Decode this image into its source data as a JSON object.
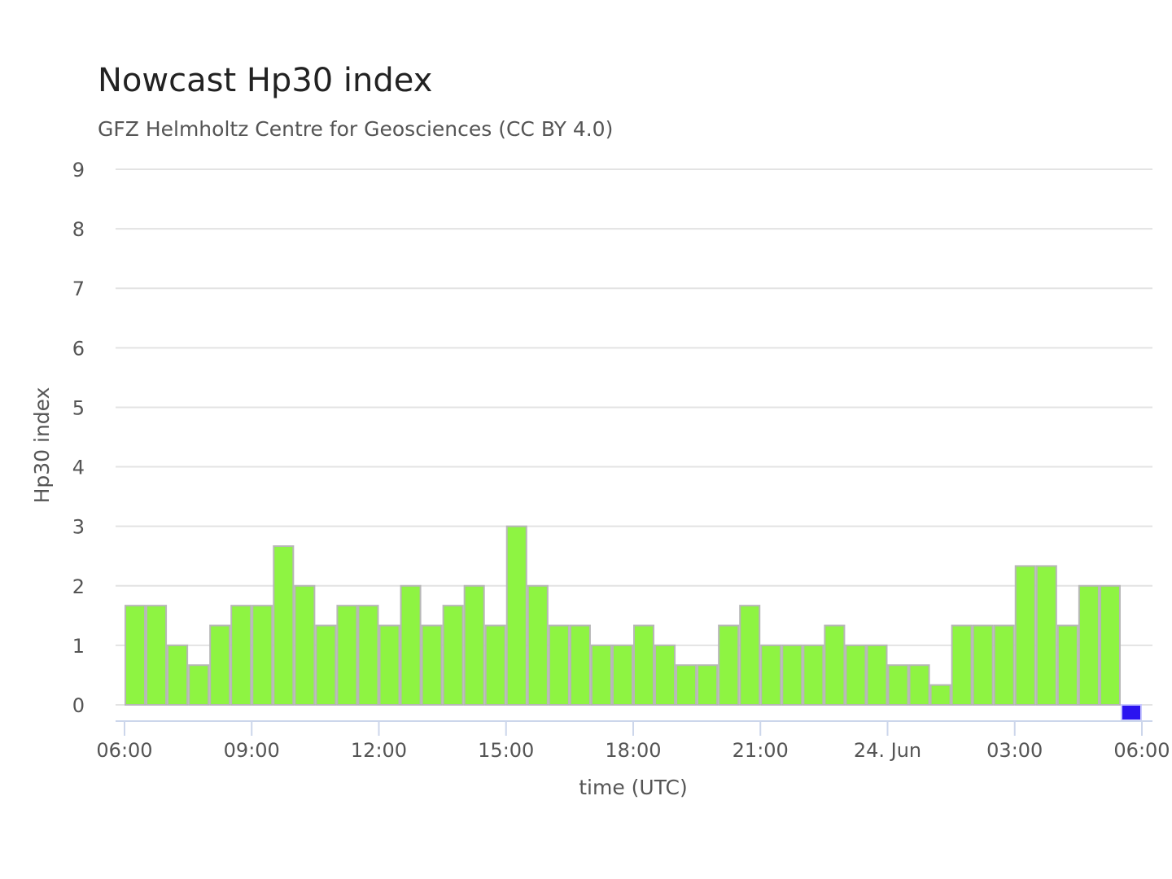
{
  "chart_data": {
    "type": "bar",
    "title": "Nowcast Hp30 index",
    "subtitle": "GFZ Helmholtz Centre for Geosciences (CC BY 4.0)",
    "xlabel": "time (UTC)",
    "ylabel": "Hp30 index",
    "ylim": [
      0,
      9
    ],
    "yticks": [
      0,
      1,
      2,
      3,
      4,
      5,
      6,
      7,
      8,
      9
    ],
    "xticks": [
      "06:00",
      "09:00",
      "12:00",
      "15:00",
      "18:00",
      "21:00",
      "24. Jun",
      "03:00",
      "06:00"
    ],
    "grid": true,
    "bar_interval": "30 min",
    "values": [
      1.667,
      1.667,
      1.0,
      0.667,
      1.333,
      1.667,
      1.667,
      2.667,
      2.0,
      1.333,
      1.667,
      1.667,
      1.333,
      2.0,
      1.333,
      1.667,
      2.0,
      1.333,
      3.0,
      2.0,
      1.333,
      1.333,
      1.0,
      1.0,
      1.333,
      1.0,
      0.667,
      0.667,
      1.333,
      1.667,
      1.0,
      1.0,
      1.0,
      1.333,
      1.0,
      1.0,
      0.667,
      0.667,
      0.333,
      1.333,
      1.333,
      1.333,
      2.333,
      2.333,
      1.333,
      2.0,
      2.0,
      0.0
    ],
    "colors": {
      "normal": "#8ef442",
      "latest": "#2b14f0",
      "grid": "#e3e3e3",
      "axis": "#ccd6eb"
    }
  }
}
